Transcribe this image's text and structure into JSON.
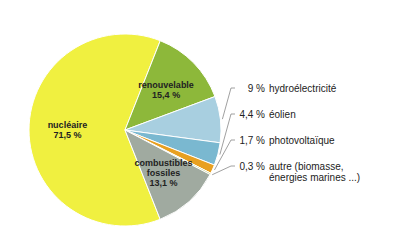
{
  "chart_data": {
    "type": "pie",
    "categories": [
      "nucléaire",
      "renouvelable",
      "hydroélectricité",
      "éolien",
      "photovoltaïque",
      "autre (biomasse,\nénergies marines ...)",
      "combustibles\nfossiles"
    ],
    "values": [
      71.5,
      15.4,
      9,
      4.4,
      1.7,
      0.3,
      13.1
    ],
    "value_labels": [
      "71,5 %",
      "15,4 %",
      "9 %",
      "4,4 %",
      "1,7 %",
      "0,3 %",
      "13,1 %"
    ],
    "colors": [
      "#f0f040",
      "#8db83a",
      "#a8cfe0",
      "#7ab8d0",
      "#e8a020",
      "#b8c870",
      "#a0aaa0"
    ],
    "data_labels": true
  }
}
